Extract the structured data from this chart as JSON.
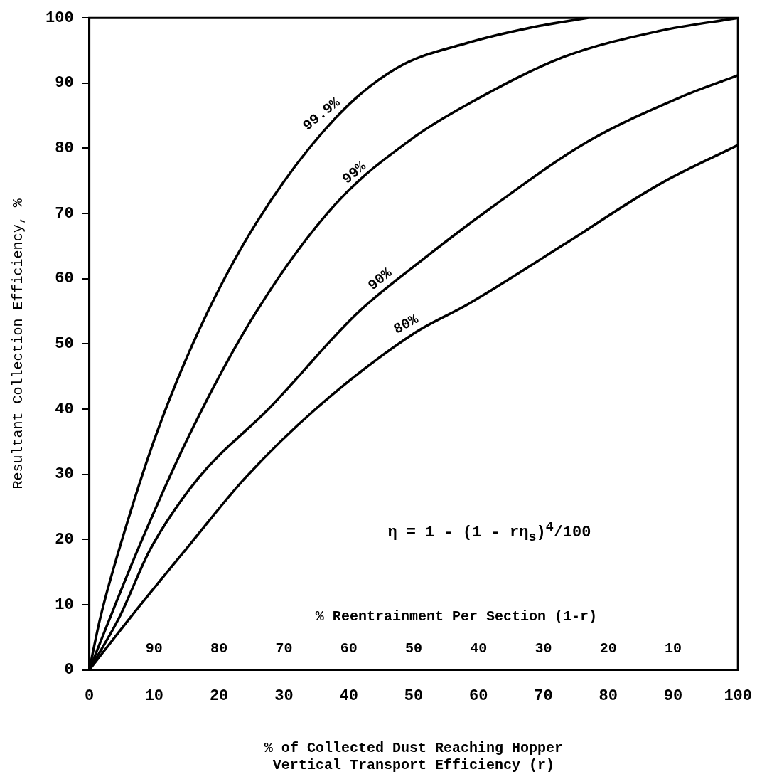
{
  "chart_data": {
    "type": "line",
    "xlabel": "% of Collected Dust Reaching Hopper\nVertical Transport Efficiency (r)",
    "ylabel": "Resultant Collection Efficiency, %",
    "x2label": "% Reentrainment Per Section (1-r)",
    "xlim": [
      0,
      100
    ],
    "xticks": [
      0,
      10,
      20,
      30,
      40,
      50,
      60,
      70,
      80,
      90,
      100
    ],
    "ylim": [
      0,
      100
    ],
    "yticks": [
      0,
      10,
      20,
      30,
      40,
      50,
      60,
      70,
      80,
      90,
      100
    ],
    "x2lim": [
      100,
      0
    ],
    "x2ticks": [
      90,
      80,
      70,
      60,
      50,
      40,
      30,
      20,
      10
    ],
    "grid": false,
    "legend": false,
    "marker": "none",
    "line_style": "solid",
    "annotations": [
      "η = 1 - (1 - rη$_{s}$)$^{4}$/100"
    ],
    "series": [
      {
        "name": "99.9%",
        "color": "#000000",
        "x": [
          0,
          1.7,
          5.7,
          10.5,
          17.1,
          25.9,
          38,
          47.4,
          58.4,
          68,
          76.8
        ],
        "values": [
          0,
          8,
          22.1,
          36.6,
          52.5,
          68.8,
          84.7,
          92.3,
          96.2,
          98.5,
          100
        ]
      },
      {
        "name": "99%",
        "color": "#000000",
        "x": [
          0,
          7.5,
          15.7,
          25.6,
          38,
          50.2,
          58.4,
          73.1,
          87.9,
          100
        ],
        "values": [
          0,
          18.5,
          36.6,
          54.7,
          71.5,
          81.8,
          86.8,
          94,
          98,
          100
        ]
      },
      {
        "name": "90%",
        "color": "#000000",
        "x": [
          0,
          4.6,
          9.4,
          16.8,
          27.8,
          41.3,
          50.2,
          62.1,
          76.8,
          91.5,
          100
        ],
        "values": [
          0,
          8,
          18.5,
          29.4,
          40.2,
          54.7,
          62,
          71,
          81,
          88,
          91.2
        ]
      },
      {
        "name": "80%",
        "color": "#000000",
        "x": [
          0,
          6.3,
          14.9,
          24,
          35.1,
          50.2,
          58.4,
          73.1,
          87.9,
          100
        ],
        "values": [
          0,
          8,
          18.5,
          29.4,
          40.2,
          51.7,
          56.1,
          65.2,
          74.5,
          80.5
        ]
      }
    ]
  }
}
